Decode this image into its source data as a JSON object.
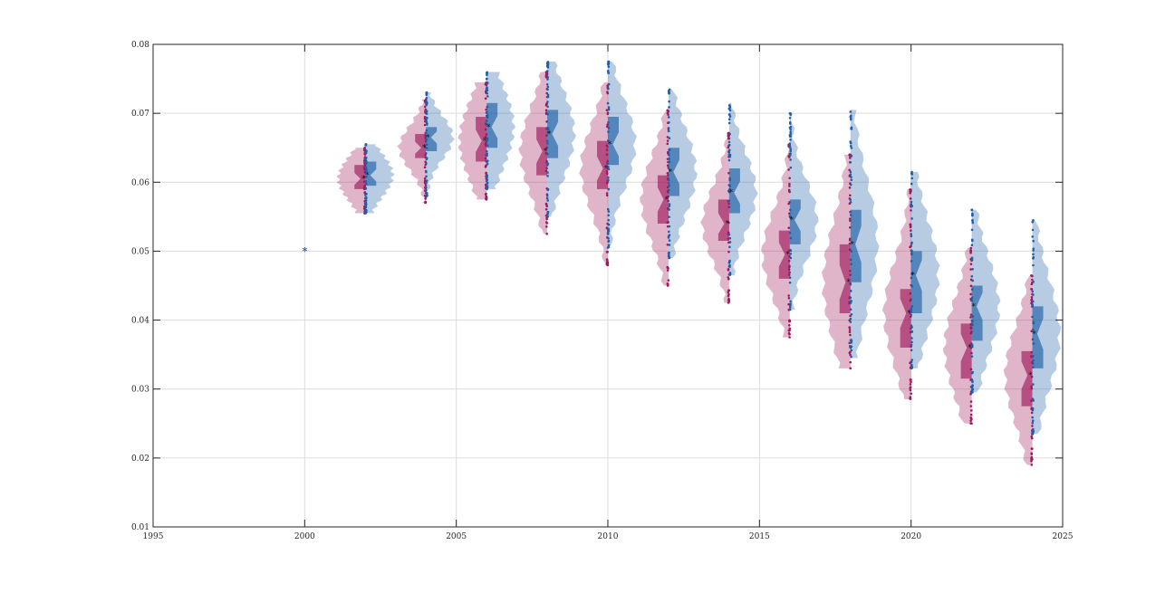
{
  "chart_data": {
    "type": "violin",
    "title": "",
    "xlabel": "",
    "ylabel": "",
    "xlim": [
      1995,
      2025
    ],
    "ylim": [
      0.01,
      0.08
    ],
    "grid": true,
    "x_ticks": [
      1995,
      2000,
      2005,
      2010,
      2015,
      2020,
      2025
    ],
    "x_tick_labels": [
      "1995",
      "2000",
      "2005",
      "2010",
      "2015",
      "2020",
      "2025"
    ],
    "y_ticks": [
      0.01,
      0.02,
      0.03,
      0.04,
      0.05,
      0.06,
      0.07,
      0.08
    ],
    "y_tick_labels": [
      "0.01",
      "0.02",
      "0.03",
      "0.04",
      "0.05",
      "0.06",
      "0.07",
      "0.08"
    ],
    "colors": {
      "left": "#a0195a",
      "right": "#1f5fa6"
    },
    "x": [
      2000,
      2002,
      2004,
      2006,
      2008,
      2010,
      2012,
      2014,
      2016,
      2018,
      2020,
      2022,
      2024
    ],
    "series": [
      {
        "side": "left",
        "median": [
          0.05,
          0.0605,
          0.065,
          0.066,
          0.0645,
          0.062,
          0.0575,
          0.054,
          0.0495,
          0.0455,
          0.041,
          0.036,
          0.032
        ],
        "q1": [
          0.05,
          0.059,
          0.0635,
          0.063,
          0.061,
          0.059,
          0.054,
          0.0515,
          0.046,
          0.041,
          0.036,
          0.0315,
          0.0275
        ],
        "q3": [
          0.05,
          0.0625,
          0.067,
          0.0695,
          0.068,
          0.066,
          0.061,
          0.0575,
          0.053,
          0.051,
          0.0445,
          0.0395,
          0.0355
        ],
        "min": [
          0.05,
          0.0555,
          0.057,
          0.0575,
          0.0525,
          0.048,
          0.045,
          0.0425,
          0.0375,
          0.033,
          0.0285,
          0.025,
          0.019
        ],
        "max": [
          0.05,
          0.065,
          0.072,
          0.0745,
          0.076,
          0.0745,
          0.0705,
          0.0672,
          0.0655,
          0.064,
          0.059,
          0.0505,
          0.0465
        ]
      },
      {
        "side": "right",
        "median": [
          0.05,
          0.061,
          0.0665,
          0.068,
          0.067,
          0.0655,
          0.0615,
          0.0585,
          0.0545,
          0.051,
          0.0465,
          0.042,
          0.038
        ],
        "q1": [
          0.05,
          0.0595,
          0.0645,
          0.065,
          0.0635,
          0.0625,
          0.058,
          0.0555,
          0.051,
          0.0455,
          0.041,
          0.037,
          0.033
        ],
        "q3": [
          0.05,
          0.063,
          0.068,
          0.0715,
          0.0705,
          0.0695,
          0.065,
          0.062,
          0.0575,
          0.056,
          0.05,
          0.045,
          0.042
        ],
        "min": [
          0.05,
          0.0555,
          0.058,
          0.059,
          0.055,
          0.0505,
          0.049,
          0.0465,
          0.0415,
          0.0345,
          0.033,
          0.0295,
          0.0235
        ],
        "max": [
          0.05,
          0.0655,
          0.073,
          0.076,
          0.0775,
          0.0775,
          0.0735,
          0.0715,
          0.07,
          0.0705,
          0.0615,
          0.056,
          0.0545
        ]
      }
    ]
  }
}
